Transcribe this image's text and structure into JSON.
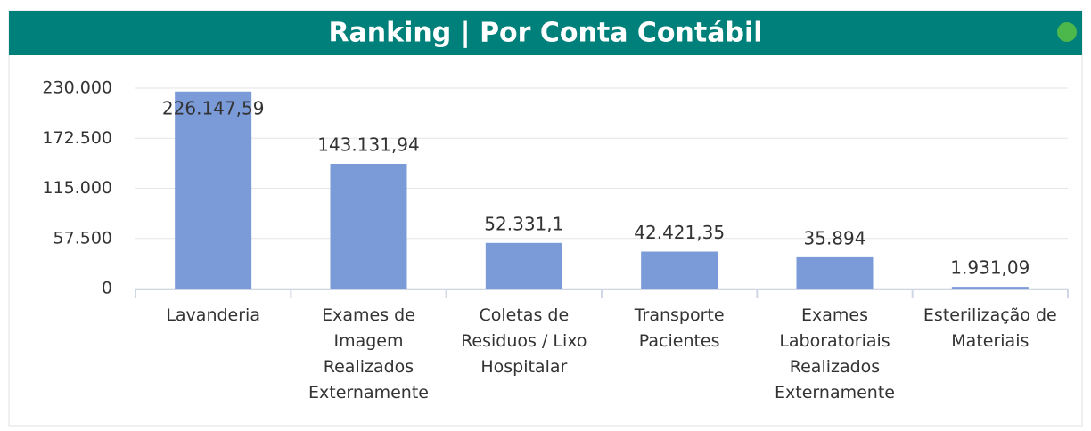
{
  "chart_data": {
    "type": "bar",
    "title": "Ranking | Por Conta Contábil",
    "categories": [
      "Lavanderia",
      "Exames de Imagem Realizados Externamente",
      "Coletas de Residuos / Lixo Hospitalar",
      "Transporte Pacientes",
      "Exames Laboratoriais Realizados Externamente",
      "Esterilização de Materiais"
    ],
    "values": [
      226147.59,
      143131.94,
      52331.1,
      42421.35,
      35894,
      1931.09
    ],
    "value_labels": [
      "226.147,59",
      "143.131,94",
      "52.331,1",
      "42.421,35",
      "35.894",
      "1.931,09"
    ],
    "color": "#7b9bd8",
    "ylim": [
      0,
      230000
    ],
    "yticks": [
      0,
      {
        "value": 57500,
        "label": "57.500"
      },
      {
        "value": 115000,
        "label": "115.000"
      },
      {
        "value": 172500,
        "label": "172.500"
      },
      {
        "value": 230000,
        "label": "230.000"
      }
    ],
    "grid": true
  }
}
